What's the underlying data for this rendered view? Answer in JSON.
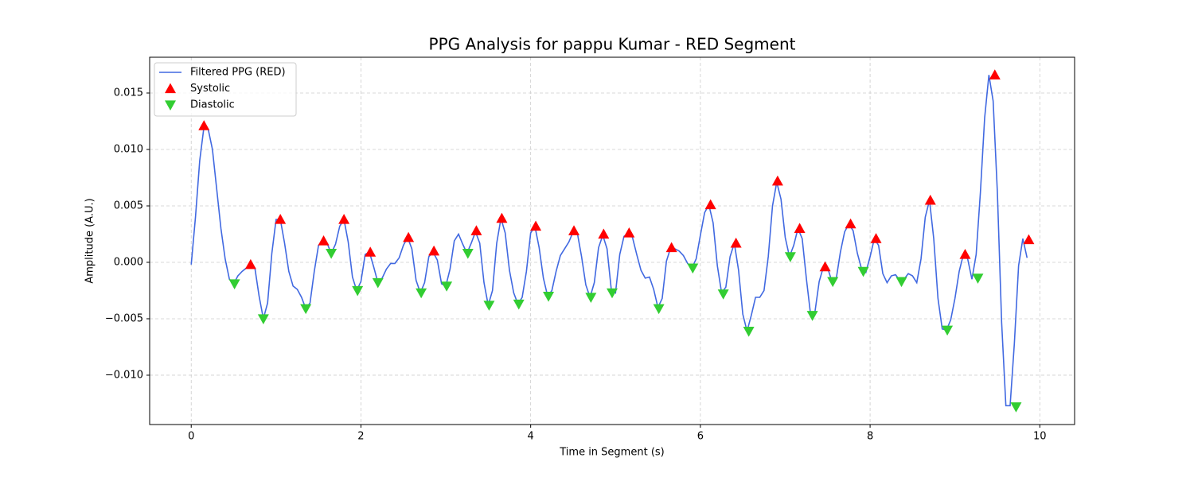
{
  "chart_data": {
    "type": "line",
    "title": "PPG Analysis for pappu Kumar - RED Segment",
    "x_label": "Time in Segment (s)",
    "y_label": "Amplitude (A.U.)",
    "xlim": [
      -0.49,
      10.41
    ],
    "ylim": [
      -0.01437,
      0.01817
    ],
    "xticks": [
      0,
      2,
      4,
      6,
      8,
      10
    ],
    "yticks": [
      {
        "value": -0.01,
        "label": "−0.010"
      },
      {
        "value": -0.005,
        "label": "−0.005"
      },
      {
        "value": 0,
        "label": "0.000"
      },
      {
        "value": 0.005,
        "label": "0.005"
      },
      {
        "value": 0.01,
        "label": "0.010"
      },
      {
        "value": 0.015,
        "label": "0.015"
      }
    ],
    "grid": true,
    "legend_position": "upper left",
    "series": [
      {
        "name": "Filtered PPG (RED)",
        "color": "#4169e1",
        "marker": "none",
        "x": [
          0,
          0.05,
          0.1,
          0.15,
          0.2,
          0.25,
          0.3,
          0.35,
          0.4,
          0.45,
          0.5,
          0.55,
          0.6,
          0.65,
          0.7,
          0.75,
          0.8,
          0.85,
          0.9,
          0.95,
          1,
          1.05,
          1.1,
          1.15,
          1.2,
          1.25,
          1.3,
          1.35,
          1.4,
          1.45,
          1.5,
          1.55,
          1.6,
          1.65,
          1.7,
          1.75,
          1.8,
          1.85,
          1.9,
          1.95,
          2,
          2.05,
          2.1,
          2.15,
          2.2,
          2.25,
          2.3,
          2.35,
          2.4,
          2.45,
          2.5,
          2.55,
          2.6,
          2.65,
          2.7,
          2.75,
          2.8,
          2.85,
          2.9,
          2.95,
          3,
          3.05,
          3.1,
          3.15,
          3.2,
          3.25,
          3.3,
          3.35,
          3.4,
          3.45,
          3.5,
          3.55,
          3.6,
          3.65,
          3.7,
          3.75,
          3.8,
          3.85,
          3.9,
          3.95,
          4,
          4.05,
          4.1,
          4.15,
          4.2,
          4.25,
          4.3,
          4.35,
          4.4,
          4.45,
          4.5,
          4.55,
          4.6,
          4.65,
          4.7,
          4.75,
          4.8,
          4.85,
          4.9,
          4.95,
          5,
          5.05,
          5.1,
          5.15,
          5.2,
          5.25,
          5.3,
          5.35,
          5.4,
          5.45,
          5.5,
          5.55,
          5.6,
          5.65,
          5.7,
          5.75,
          5.8,
          5.85,
          5.9,
          5.95,
          6,
          6.05,
          6.1,
          6.15,
          6.2,
          6.25,
          6.3,
          6.35,
          6.4,
          6.45,
          6.5,
          6.55,
          6.6,
          6.65,
          6.7,
          6.75,
          6.8,
          6.85,
          6.9,
          6.95,
          7,
          7.05,
          7.1,
          7.15,
          7.2,
          7.25,
          7.3,
          7.35,
          7.4,
          7.45,
          7.5,
          7.55,
          7.6,
          7.65,
          7.7,
          7.75,
          7.8,
          7.85,
          7.9,
          7.95,
          8,
          8.05,
          8.1,
          8.15,
          8.2,
          8.25,
          8.3,
          8.35,
          8.4,
          8.45,
          8.5,
          8.55,
          8.6,
          8.65,
          8.7,
          8.75,
          8.8,
          8.85,
          8.9,
          8.95,
          9,
          9.05,
          9.1,
          9.15,
          9.2,
          9.25,
          9.3,
          9.35,
          9.4,
          9.45,
          9.5,
          9.55,
          9.6,
          9.65,
          9.7,
          9.75,
          9.8,
          9.85
        ],
        "values": [
          -0.0002,
          0.004,
          0.009,
          0.012,
          0.0118,
          0.01,
          0.0065,
          0.003,
          0.0003,
          -0.0015,
          -0.0019,
          -0.0012,
          -0.0008,
          -0.0005,
          -0.0003,
          -0.0005,
          -0.003,
          -0.005,
          -0.0036,
          0.0008,
          0.0038,
          0.0038,
          0.0017,
          -0.0008,
          -0.0021,
          -0.0024,
          -0.0031,
          -0.0041,
          -0.0036,
          -0.0008,
          0.0015,
          0.0019,
          0.0017,
          0.0008,
          0.0016,
          0.0032,
          0.0038,
          0.0018,
          -0.0013,
          -0.0025,
          -0.0017,
          0.0007,
          0.0009,
          -0.0004,
          -0.0018,
          -0.0014,
          -0.0006,
          -0.0001,
          -0.0001,
          0.0004,
          0.0015,
          0.0022,
          0.0012,
          -0.0016,
          -0.0027,
          -0.0018,
          0.0005,
          0.0009,
          0.0002,
          -0.0019,
          -0.0021,
          -0.0006,
          0.0019,
          0.0025,
          0.0016,
          0.0008,
          0.0017,
          0.0027,
          0.0017,
          -0.0018,
          -0.0038,
          -0.0025,
          0.0017,
          0.0039,
          0.0026,
          -0.0007,
          -0.0027,
          -0.0037,
          -0.0031,
          -0.0008,
          0.0026,
          0.0032,
          0.0013,
          -0.0014,
          -0.003,
          -0.0025,
          -0.0008,
          0.0006,
          0.0012,
          0.0018,
          0.0027,
          0.0026,
          0.0005,
          -0.002,
          -0.0031,
          -0.0018,
          0.0013,
          0.0024,
          0.0012,
          -0.0024,
          -0.0027,
          0.0007,
          0.0023,
          0.0026,
          0.0022,
          0.0007,
          -0.0007,
          -0.0014,
          -0.0013,
          -0.0024,
          -0.004,
          -0.0032,
          0.0001,
          0.0013,
          0.0012,
          0.001,
          0.0006,
          -0.0001,
          -0.0005,
          0.0003,
          0.0024,
          0.0044,
          0.0051,
          0.0035,
          -0.0003,
          -0.0027,
          -0.0022,
          0.0005,
          0.0017,
          -0.0007,
          -0.0046,
          -0.0061,
          -0.0047,
          -0.0031,
          -0.0031,
          -0.0025,
          0.0005,
          0.005,
          0.0071,
          0.0056,
          0.0022,
          0.0005,
          0.0015,
          0.003,
          0.0021,
          -0.0015,
          -0.0047,
          -0.0044,
          -0.0017,
          -0.0004,
          -0.0005,
          -0.0017,
          -0.0015,
          0.0009,
          0.0027,
          0.0034,
          0.0028,
          0.0008,
          -0.0006,
          -0.0009,
          0.0005,
          0.0021,
          0.0015,
          -0.001,
          -0.0018,
          -0.0012,
          -0.0011,
          -0.0016,
          -0.0015,
          -0.001,
          -0.0012,
          -0.0018,
          0.0003,
          0.004,
          0.0055,
          0.0021,
          -0.0032,
          -0.0059,
          -0.006,
          -0.0051,
          -0.0032,
          -0.0008,
          0.0007,
          0.0003,
          -0.0015,
          0.0007,
          0.0062,
          0.0128,
          0.0166,
          0.0143,
          0.0062,
          -0.0053,
          -0.0127,
          -0.0127,
          -0.0072,
          -0.0003,
          0.0021,
          0.0004
        ]
      },
      {
        "name": "Systolic",
        "color": "#ff0000",
        "marker": "triangle-up",
        "x": [
          0.15,
          0.7,
          1.05,
          1.56,
          1.8,
          2.11,
          2.56,
          2.86,
          3.36,
          3.66,
          4.06,
          4.51,
          4.86,
          5.16,
          5.66,
          6.12,
          6.42,
          6.91,
          7.17,
          7.47,
          7.77,
          8.07,
          8.71,
          9.12,
          9.47,
          9.87
        ],
        "values": [
          0.0121,
          -0.0002,
          0.0038,
          0.0019,
          0.0038,
          0.0009,
          0.0022,
          0.001,
          0.0028,
          0.0039,
          0.0032,
          0.0028,
          0.0025,
          0.0026,
          0.0013,
          0.0051,
          0.0017,
          0.0072,
          0.003,
          -0.0004,
          0.0034,
          0.0021,
          0.0055,
          0.0007,
          0.0166,
          0.002
        ]
      },
      {
        "name": "Diastolic",
        "color": "#32cd32",
        "marker": "triangle-down",
        "x": [
          0.51,
          0.85,
          1.35,
          1.65,
          1.96,
          2.2,
          2.71,
          3.01,
          3.26,
          3.51,
          3.86,
          4.21,
          4.71,
          4.96,
          5.51,
          5.91,
          6.27,
          6.57,
          7.06,
          7.32,
          7.56,
          7.92,
          8.37,
          8.91,
          9.27,
          9.72
        ],
        "values": [
          -0.0019,
          -0.005,
          -0.0041,
          0.0008,
          -0.0025,
          -0.0018,
          -0.0027,
          -0.0021,
          0.0008,
          -0.0038,
          -0.0037,
          -0.003,
          -0.0031,
          -0.0027,
          -0.0041,
          -0.0005,
          -0.0028,
          -0.0061,
          0.0005,
          -0.0047,
          -0.0017,
          -0.0008,
          -0.0017,
          -0.006,
          -0.0014,
          -0.0128
        ]
      }
    ]
  }
}
